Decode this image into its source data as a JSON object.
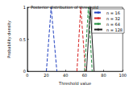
{
  "chart_data": {
    "type": "line",
    "title": "Posterior distribution of threshold",
    "x_label": "Threshold value",
    "y_label": "Probability density",
    "xlim": [
      0,
      100
    ],
    "xticks": [
      0,
      20,
      40,
      60,
      80,
      100
    ],
    "ylim": [
      0,
      1
    ],
    "yticks": [
      0,
      0.5,
      1
    ],
    "legend": "upper right",
    "grid": false,
    "series": [
      {
        "name": "n = 16",
        "color": "#1f3fbf",
        "line_style": "dashed",
        "x": [
          20,
          25,
          31
        ],
        "values": [
          0,
          1,
          0
        ]
      },
      {
        "name": "n = 32",
        "color": "#d62020",
        "line_style": "dashed",
        "x": [
          52,
          56,
          61
        ],
        "values": [
          0,
          1,
          0
        ]
      },
      {
        "name": "n = 64",
        "color": "#1e8a3a",
        "line_style": "dashed",
        "x": [
          60,
          64,
          68
        ],
        "values": [
          0,
          1,
          0
        ]
      },
      {
        "name": "n = 128",
        "color": "#1a1a1a",
        "line_style": "solid",
        "x": [
          62,
          66,
          70
        ],
        "values": [
          0,
          1,
          0
        ]
      }
    ]
  }
}
